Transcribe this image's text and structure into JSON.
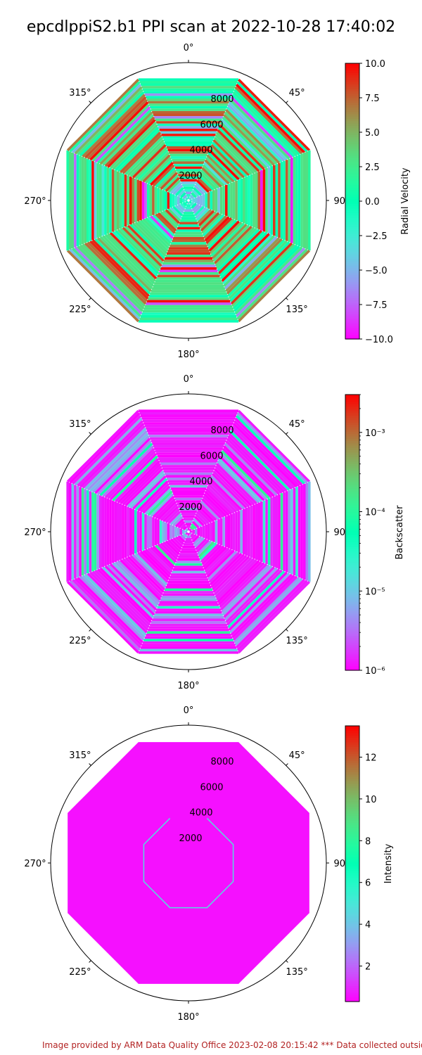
{
  "title": "epcdlppiS2.b1 PPI scan at 2022-10-28 17:40:02",
  "footer": "Image provided by ARM Data Quality Office 2023-02-08 20:15:42    *** Data collected outside",
  "chart_data": [
    {
      "type": "polar-ppi",
      "name": "radial_velocity",
      "angle_labels": [
        "0°",
        "45°",
        "90°",
        "135°",
        "180°",
        "225°",
        "270°",
        "315°"
      ],
      "radial_ticks": [
        2000,
        4000,
        6000,
        8000
      ],
      "r_max": 10000,
      "colorbar": {
        "label": "Radial Velocity",
        "scale": "linear",
        "min": -10.0,
        "max": 10.0,
        "ticks": [
          -10.0,
          -7.5,
          -5.0,
          -2.5,
          0.0,
          2.5,
          5.0,
          7.5,
          10.0
        ],
        "tick_labels": [
          "−10.0",
          "−7.5",
          "−5.0",
          "−2.5",
          "0.0",
          "2.5",
          "5.0",
          "7.5",
          "10.0"
        ]
      },
      "colormap": "rainbow"
    },
    {
      "type": "polar-ppi",
      "name": "backscatter",
      "angle_labels": [
        "0°",
        "45°",
        "90°",
        "135°",
        "180°",
        "225°",
        "270°",
        "315°"
      ],
      "radial_ticks": [
        2000,
        4000,
        6000,
        8000
      ],
      "r_max": 10000,
      "colorbar": {
        "label": "Backscatter",
        "scale": "log",
        "min": 1e-06,
        "max": 0.003,
        "ticks": [
          1e-06,
          1e-05,
          0.0001,
          0.001
        ],
        "tick_labels": [
          "10⁻⁶",
          "10⁻⁵",
          "10⁻⁴",
          "10⁻³"
        ]
      },
      "colormap": "rainbow"
    },
    {
      "type": "polar-ppi",
      "name": "intensity",
      "angle_labels": [
        "0°",
        "45°",
        "90°",
        "135°",
        "180°",
        "225°",
        "270°",
        "315°"
      ],
      "radial_ticks": [
        2000,
        4000,
        6000,
        8000
      ],
      "r_max": 10000,
      "colorbar": {
        "label": "Intensity",
        "scale": "linear",
        "min": 0.3,
        "max": 13.5,
        "ticks": [
          2,
          4,
          6,
          8,
          10,
          12
        ],
        "tick_labels": [
          "2",
          "4",
          "6",
          "8",
          "10",
          "12"
        ]
      },
      "colormap": "rainbow"
    }
  ]
}
